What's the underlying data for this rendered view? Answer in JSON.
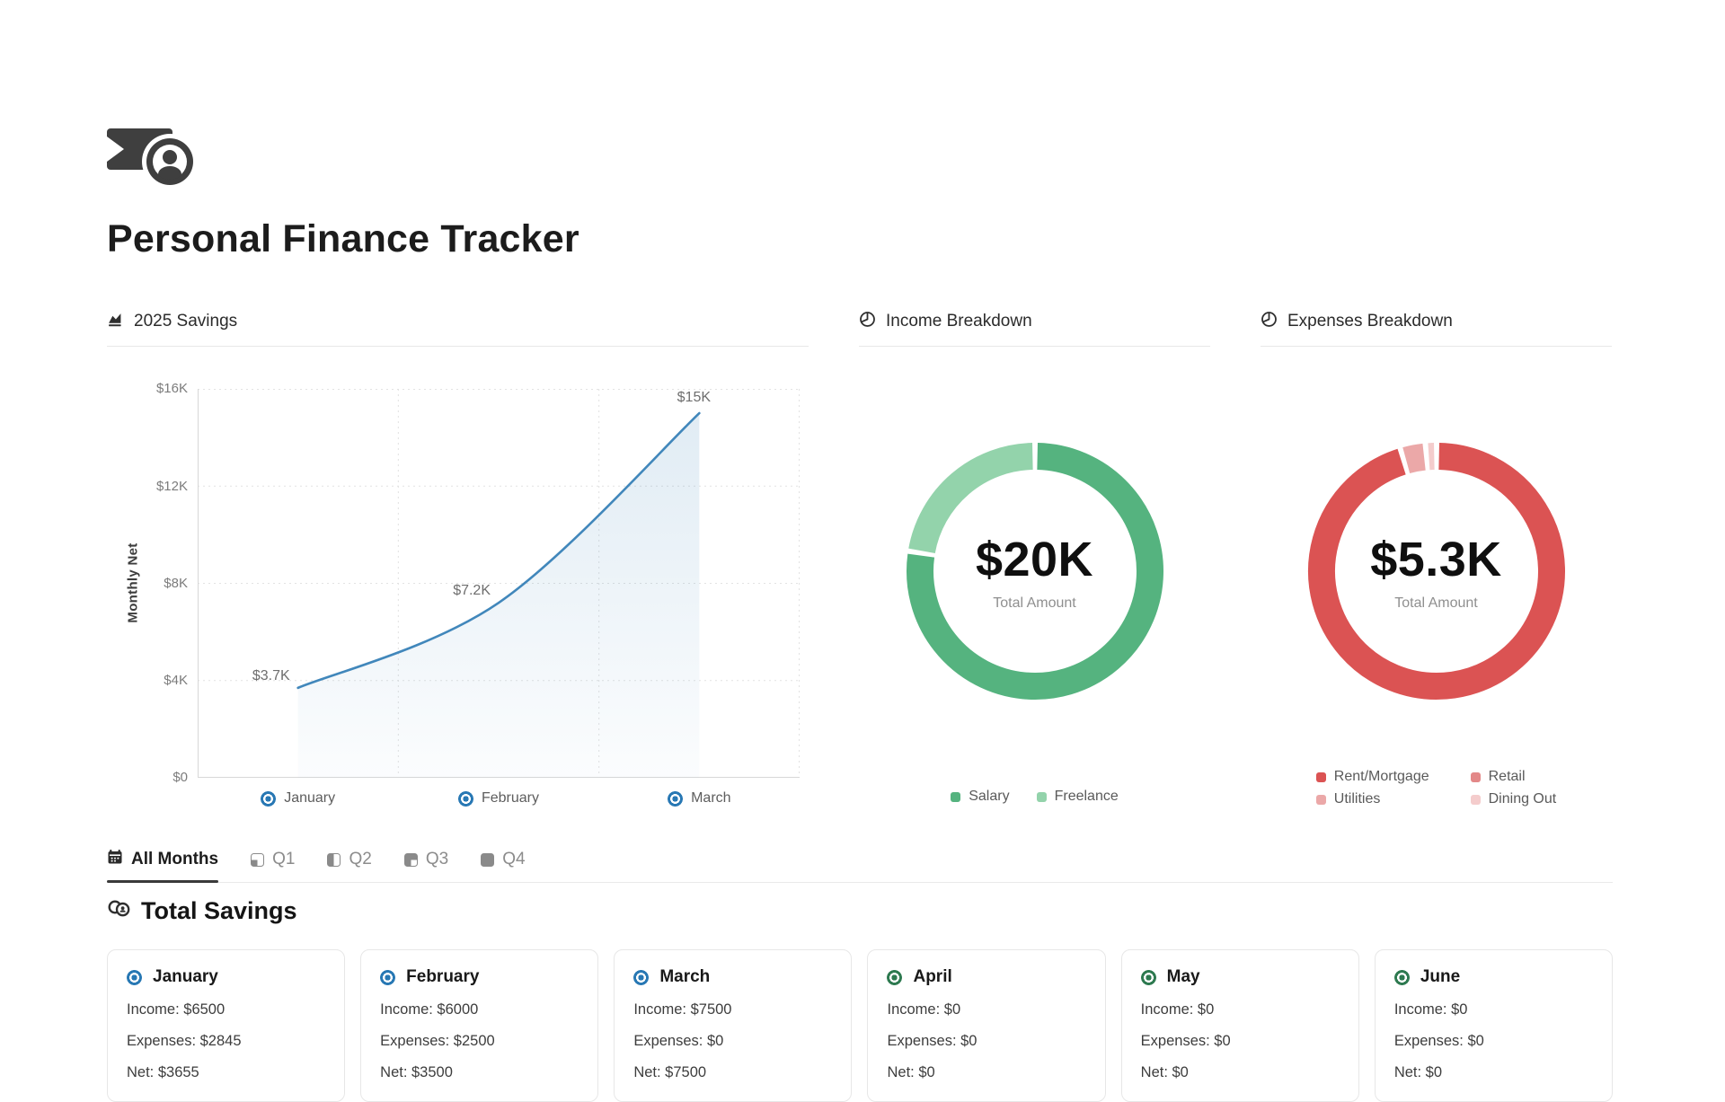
{
  "header": {
    "icon": "banknote-coin-icon",
    "title": "Personal Finance Tracker"
  },
  "chart_data": [
    {
      "id": "savings",
      "type": "area",
      "title": "2025 Savings",
      "ylabel": "Monthly Net",
      "categories": [
        "January",
        "February",
        "March"
      ],
      "series": [
        {
          "name": "Monthly Net",
          "values": [
            3700,
            7200,
            15000
          ]
        }
      ],
      "point_labels": [
        "$3.7K",
        "$7.2K",
        "$15K"
      ],
      "ylim": [
        0,
        16000
      ],
      "yticks": [
        {
          "value": 0,
          "label": "$0"
        },
        {
          "value": 4000,
          "label": "$4K"
        },
        {
          "value": 8000,
          "label": "$8K"
        },
        {
          "value": 12000,
          "label": "$12K"
        },
        {
          "value": 16000,
          "label": "$16K"
        }
      ],
      "grid": "dotted",
      "line_color": "#4187bb",
      "marker_color": "#2878b4"
    },
    {
      "id": "income",
      "type": "donut",
      "title": "Income Breakdown",
      "center_label": "$20K",
      "center_sublabel": "Total Amount",
      "total": 20000,
      "legend_position": "bottom",
      "segments": [
        {
          "label": "Salary",
          "value": 15500,
          "color": "#55b37f"
        },
        {
          "label": "Freelance",
          "value": 4500,
          "color": "#93d3ab"
        }
      ]
    },
    {
      "id": "expenses",
      "type": "donut",
      "title": "Expenses Breakdown",
      "center_label": "$5.3K",
      "center_sublabel": "Total Amount",
      "total": 5345,
      "legend_position": "bottom",
      "segments": [
        {
          "label": "Rent/Mortgage",
          "value": 5100,
          "color": "#db5353"
        },
        {
          "label": "Retail",
          "value": 0,
          "color": "#e38888"
        },
        {
          "label": "Utilities",
          "value": 170,
          "color": "#eba8a8"
        },
        {
          "label": "Dining Out",
          "value": 75,
          "color": "#f4cccc"
        }
      ]
    }
  ],
  "tabs": {
    "items": [
      {
        "label": "All Months",
        "icon": "calendar-icon",
        "active": true
      },
      {
        "label": "Q1",
        "icon": "quarter-1-icon",
        "active": false
      },
      {
        "label": "Q2",
        "icon": "quarter-2-icon",
        "active": false
      },
      {
        "label": "Q3",
        "icon": "quarter-3-icon",
        "active": false
      },
      {
        "label": "Q4",
        "icon": "quarter-4-icon",
        "active": false
      }
    ]
  },
  "total_savings": {
    "icon": "coins-icon",
    "heading": "Total Savings"
  },
  "month_cards": [
    {
      "month": "January",
      "income_label": "Income: $6500",
      "expenses_label": "Expenses: $2845",
      "net_label": "Net: $3655",
      "dot_color": "#2878b4"
    },
    {
      "month": "February",
      "income_label": "Income: $6000",
      "expenses_label": "Expenses: $2500",
      "net_label": "Net: $3500",
      "dot_color": "#2878b4"
    },
    {
      "month": "March",
      "income_label": "Income: $7500",
      "expenses_label": "Expenses: $0",
      "net_label": "Net: $7500",
      "dot_color": "#2878b4"
    },
    {
      "month": "April",
      "income_label": "Income: $0",
      "expenses_label": "Expenses: $0",
      "net_label": "Net: $0",
      "dot_color": "#2e7a50"
    },
    {
      "month": "May",
      "income_label": "Income: $0",
      "expenses_label": "Expenses: $0",
      "net_label": "Net: $0",
      "dot_color": "#2e7a50"
    },
    {
      "month": "June",
      "income_label": "Income: $0",
      "expenses_label": "Expenses: $0",
      "net_label": "Net: $0",
      "dot_color": "#2e7a50"
    }
  ]
}
